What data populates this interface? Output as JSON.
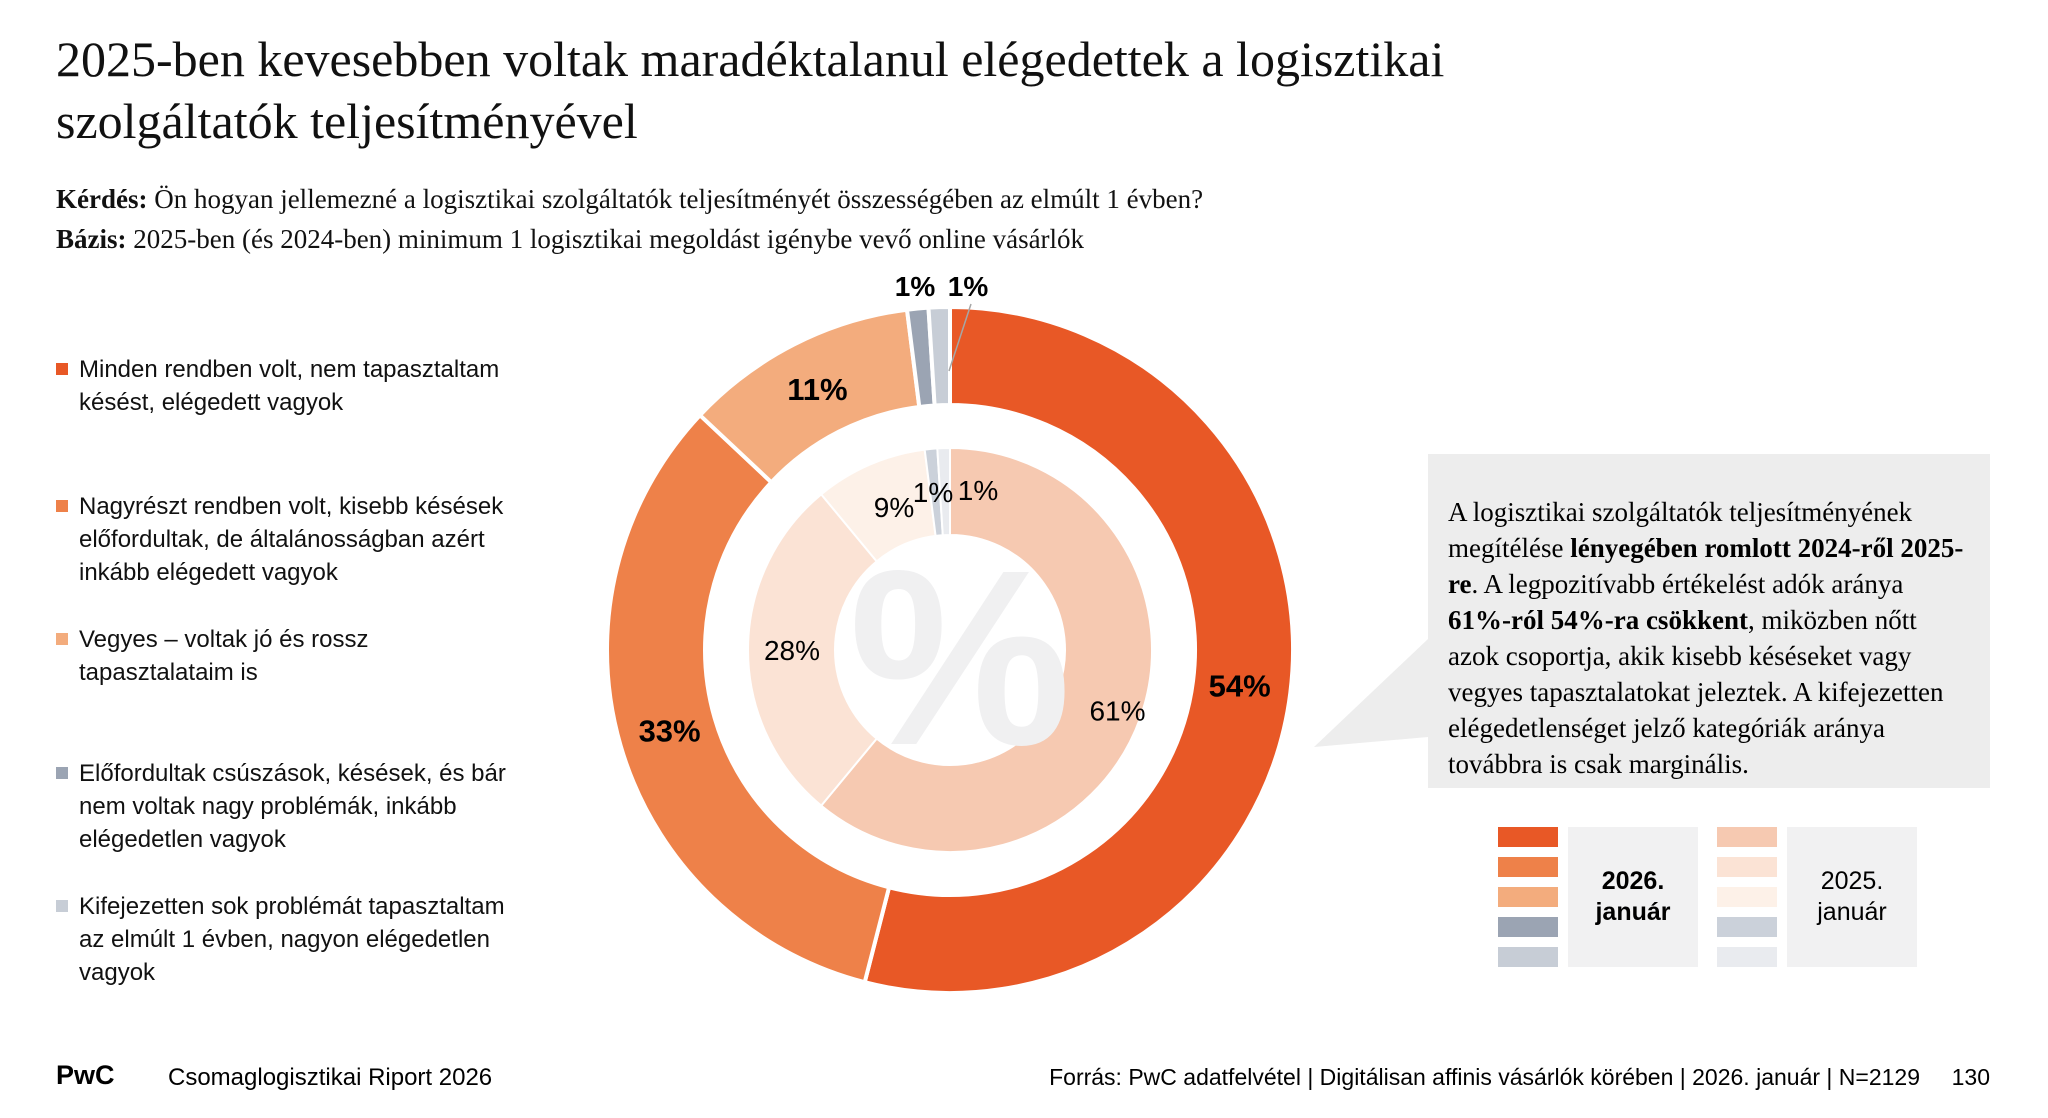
{
  "title": "2025-ben kevesebben voltak maradéktalanul elégedettek a logisztikai\nszolgáltatók teljesítményével",
  "question": {
    "label": "Kérdés:",
    "text": " Ön hogyan jellemezné a logisztikai szolgáltatók teljesítményét összességében az elmúlt 1 évben?"
  },
  "basis": {
    "label": "Bázis:",
    "text": " 2025-ben (és 2024-ben) minimum 1 logisztikai megoldást igénybe vevő online vásárlók"
  },
  "colors": {
    "y2026": [
      "#E85826",
      "#EE8149",
      "#F3AC7D",
      "#9BA4B3",
      "#C7CDD6"
    ],
    "y2025": [
      "#F6C9B1",
      "#FBE3D5",
      "#FDF1E8",
      "#CBD1DA",
      "#E9EBEF"
    ],
    "callout_bg": "#EDEDED",
    "legend_box_bg": "#F1F1F2",
    "watermark": "#F0F0F1",
    "leader": "#A6A6A6",
    "text": "#111111"
  },
  "legend_panel": {
    "items": [
      "Minden rendben volt, nem tapasztaltam\nkésést, elégedett vagyok",
      "Nagyrészt rendben volt, kisebb késések\nelőfordultak, de általánosságban azért\ninkább elégedett vagyok",
      "Vegyes – voltak jó és rossz\ntapasztalataim is",
      "Előfordultak csúszások, késések, és bár\nnem voltak nagy problémák, inkább\nelégedetlen vagyok",
      "Kifejezetten sok problémát tapasztaltam\naz elmúlt 1 évben, nagyon elégedetlen\nvagyok"
    ]
  },
  "chart_data": {
    "type": "donut",
    "title": "",
    "categories": [
      "Minden rendben volt, nem tapasztaltam késést, elégedett vagyok",
      "Nagyrészt rendben volt, kisebb késések előfordultak, de általánosságban azért inkább elégedett vagyok",
      "Vegyes – voltak jó és rossz tapasztalataim is",
      "Előfordultak csúszások, késések, és bár nem voltak nagy problémák, inkább elégedetlen vagyok",
      "Kifejezetten sok problémát tapasztaltam az elmúlt 1 évben, nagyon elégedetlen vagyok"
    ],
    "series": [
      {
        "name": "2026. január",
        "ring": "outer",
        "values": [
          54,
          33,
          11,
          1,
          1
        ],
        "labels": [
          "54%",
          "33%",
          "11%",
          "1%",
          "1%"
        ],
        "colors": [
          "#E85826",
          "#EE8149",
          "#F3AC7D",
          "#9BA4B3",
          "#C7CDD6"
        ]
      },
      {
        "name": "2025. január",
        "ring": "inner",
        "values": [
          61,
          28,
          9,
          1,
          1
        ],
        "labels": [
          "61%",
          "28%",
          "9%",
          "1%",
          "1%"
        ],
        "colors": [
          "#F6C9B1",
          "#FBE3D5",
          "#FDF1E8",
          "#CBD1DA",
          "#E9EBEF"
        ]
      }
    ],
    "center_watermark": "%",
    "start_angle_deg": 0,
    "direction": "clockwise",
    "legend_position": "bottom-right"
  },
  "callout": {
    "segments": [
      {
        "t": "A logisztikai szolgáltatók teljesítményének megítélése ",
        "b": false
      },
      {
        "t": "lényegében romlott 2024-ről 2025-re",
        "b": true
      },
      {
        "t": ". A legpozitívabb értékelést adók aránya ",
        "b": false
      },
      {
        "t": "61%-ról 54%-ra csökkent",
        "b": true
      },
      {
        "t": ", miközben nőtt azok csoportja, akik kisebb késéseket vagy vegyes tapasztalatokat jeleztek. A kifejezetten elégedetlenséget jelző kategóriák aránya továbbra is csak marginális.",
        "b": false
      }
    ]
  },
  "ring_legend": {
    "y2026_label": "2026.\njanuár",
    "y2025_label": "2025.\njanuár"
  },
  "footer": {
    "brand": "PwC",
    "report": "Csomaglogisztikai Riport 2026",
    "source": "Forrás: PwC adatfelvétel | Digitálisan affinis vásárlók körében | 2026. január | N=2129",
    "page": "130"
  }
}
